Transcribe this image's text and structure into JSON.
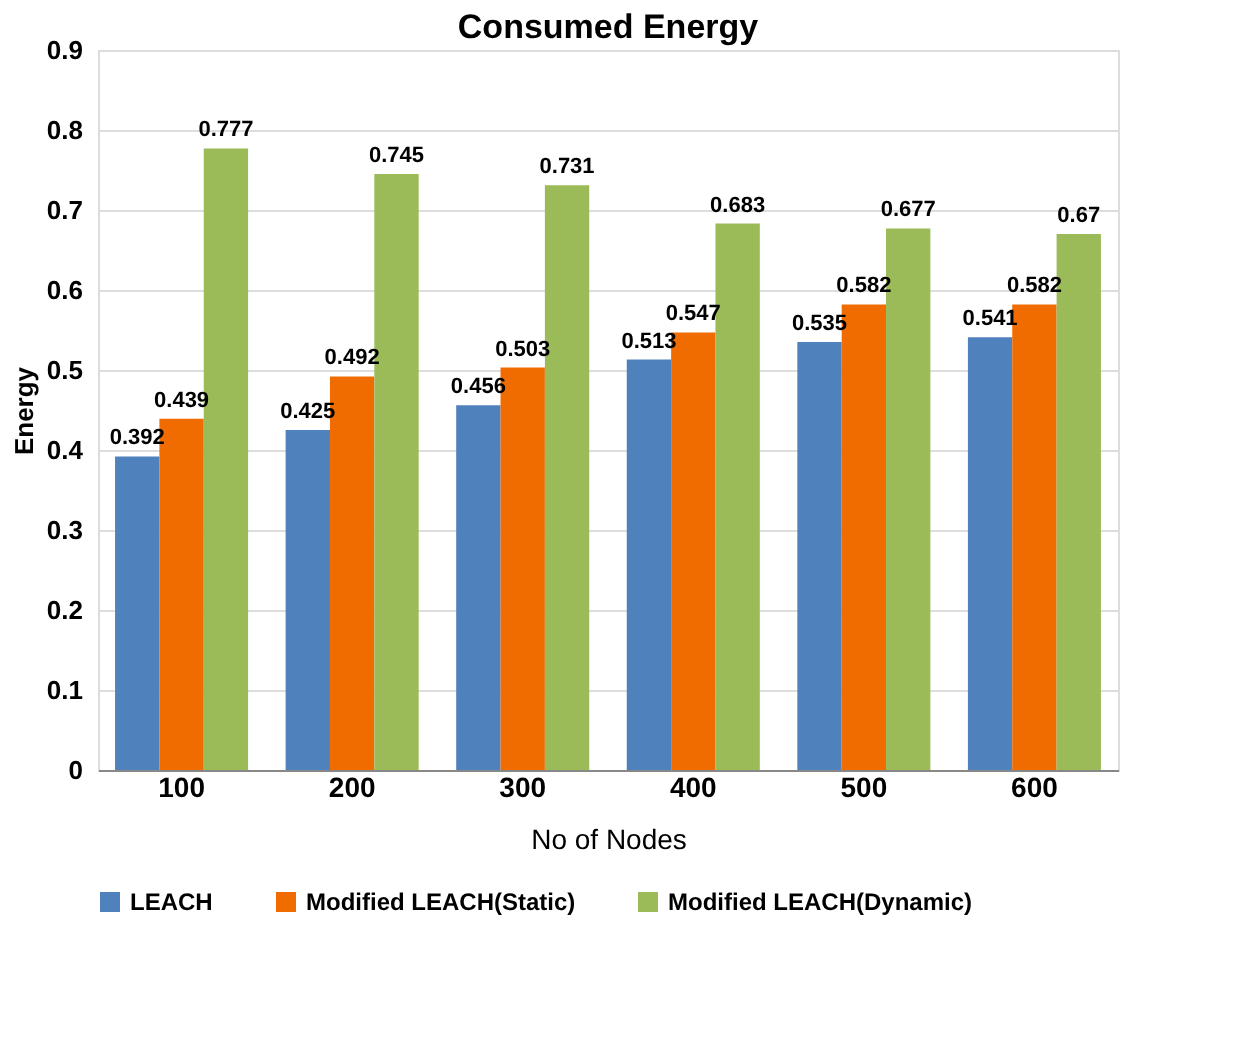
{
  "chart_data": {
    "type": "bar",
    "title": "Consumed Energy",
    "xlabel": "No of Nodes",
    "ylabel": "Energy",
    "categories": [
      "100",
      "200",
      "300",
      "400",
      "500",
      "600"
    ],
    "series": [
      {
        "name": "LEACH",
        "color": "#4f81bd",
        "values": [
          0.392,
          0.425,
          0.456,
          0.513,
          0.535,
          0.541
        ]
      },
      {
        "name": "Modified LEACH(Static)",
        "color": "#f06c00",
        "values": [
          0.439,
          0.492,
          0.503,
          0.547,
          0.582,
          0.582
        ]
      },
      {
        "name": "Modified LEACH(Dynamic)",
        "color": "#9bbb59",
        "values": [
          0.777,
          0.745,
          0.731,
          0.683,
          0.677,
          0.67
        ]
      }
    ],
    "ylim": [
      0,
      0.9
    ],
    "yticks": [
      0,
      0.1,
      0.2,
      0.3,
      0.4,
      0.5,
      0.6,
      0.7,
      0.8,
      0.9
    ],
    "grid": "y",
    "legend": "bottom",
    "data_labels": true
  }
}
